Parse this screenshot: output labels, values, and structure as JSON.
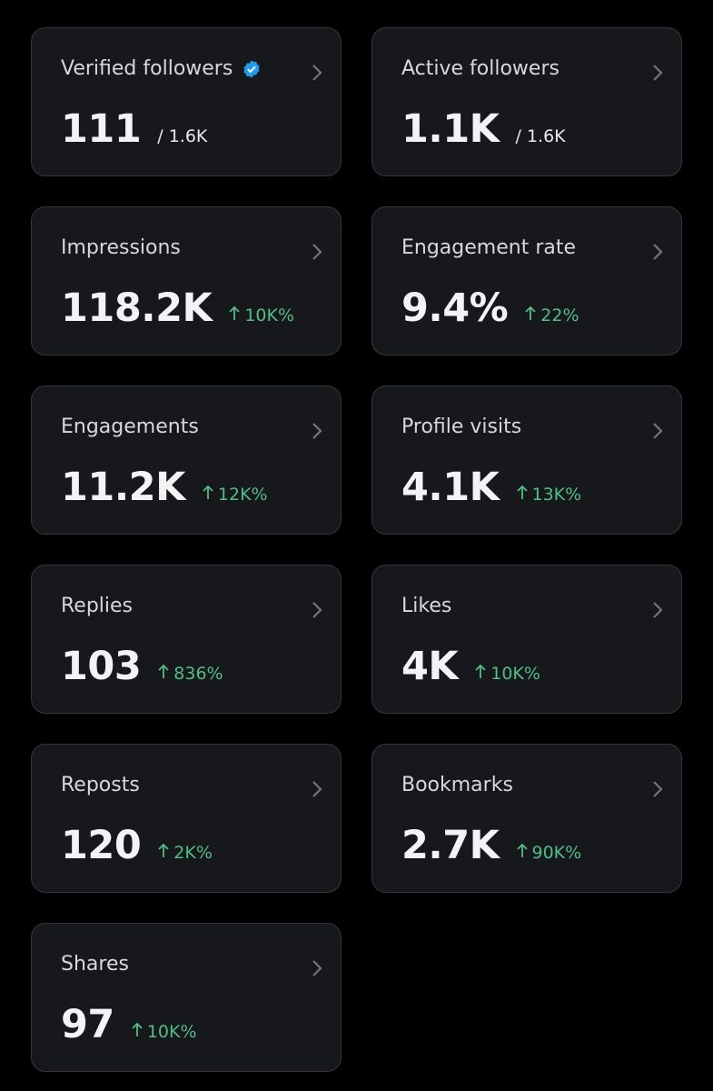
{
  "cards": [
    {
      "label": "Verified followers",
      "value": "111",
      "total": "/ 1.6K"
    },
    {
      "label": "Active followers",
      "value": "1.1K",
      "total": "/ 1.6K"
    },
    {
      "label": "Impressions",
      "value": "118.2K",
      "change": "10K%"
    },
    {
      "label": "Engagement rate",
      "value": "9.4%",
      "change": "22%"
    },
    {
      "label": "Engagements",
      "value": "11.2K",
      "change": "12K%"
    },
    {
      "label": "Profile visits",
      "value": "4.1K",
      "change": "13K%"
    },
    {
      "label": "Replies",
      "value": "103",
      "change": "836%"
    },
    {
      "label": "Likes",
      "value": "4K",
      "change": "10K%"
    },
    {
      "label": "Reposts",
      "value": "120",
      "change": "2K%"
    },
    {
      "label": "Bookmarks",
      "value": "2.7K",
      "change": "90K%"
    },
    {
      "label": "Shares",
      "value": "97",
      "change": "10K%"
    }
  ]
}
